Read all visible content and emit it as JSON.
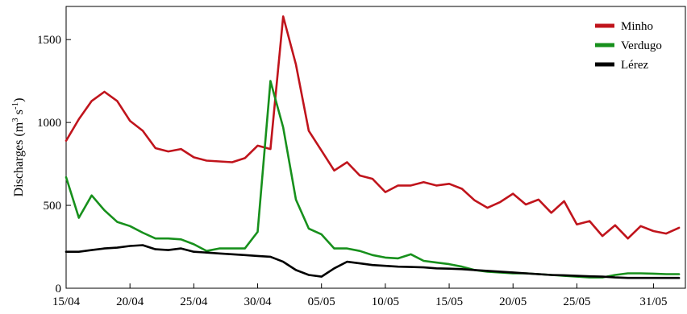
{
  "chart_data": {
    "type": "line",
    "ylabel": "Discharges (m³ s⁻¹)",
    "ylabel_parts": {
      "main": "Discharges (m",
      "sup1": "3",
      "mid": " s",
      "sup2": "-1",
      "end": ")"
    },
    "xlabel": "",
    "ylim": [
      0,
      1700
    ],
    "x_day_range": [
      0,
      47
    ],
    "y_ticks": [
      {
        "value": 0,
        "label": "0"
      },
      {
        "value": 500,
        "label": "500"
      },
      {
        "value": 1000,
        "label": "1000"
      },
      {
        "value": 1500,
        "label": "1500"
      }
    ],
    "x_ticks": [
      {
        "day": 0,
        "label": "15/04"
      },
      {
        "day": 5,
        "label": "20/04"
      },
      {
        "day": 10,
        "label": "25/04"
      },
      {
        "day": 15,
        "label": "30/04"
      },
      {
        "day": 20,
        "label": "05/05"
      },
      {
        "day": 25,
        "label": "10/05"
      },
      {
        "day": 30,
        "label": "15/05"
      },
      {
        "day": 35,
        "label": "20/05"
      },
      {
        "day": 40,
        "label": "25/05"
      },
      {
        "day": 46,
        "label": "31/05"
      }
    ],
    "legend_position": "top-right",
    "grid": false,
    "series": [
      {
        "name": "Minho",
        "color": "#c0141c",
        "values": [
          890,
          1020,
          1130,
          1185,
          1130,
          1010,
          950,
          845,
          825,
          840,
          790,
          770,
          765,
          760,
          785,
          860,
          840,
          1640,
          1350,
          950,
          830,
          710,
          760,
          680,
          660,
          580,
          620,
          620,
          640,
          620,
          630,
          600,
          530,
          485,
          520,
          570,
          505,
          535,
          455,
          525,
          385,
          405,
          315,
          380,
          300,
          375,
          345,
          330,
          365
        ]
      },
      {
        "name": "Verdugo",
        "color": "#17901c",
        "values": [
          670,
          425,
          560,
          470,
          400,
          375,
          335,
          300,
          300,
          295,
          265,
          225,
          240,
          240,
          240,
          340,
          1250,
          970,
          535,
          360,
          325,
          240,
          240,
          225,
          200,
          185,
          180,
          205,
          165,
          155,
          145,
          130,
          110,
          100,
          95,
          90,
          90,
          85,
          80,
          75,
          70,
          65,
          65,
          80,
          90,
          90,
          88,
          85,
          85
        ]
      },
      {
        "name": "Lérez",
        "color": "#000000",
        "values": [
          220,
          220,
          230,
          240,
          245,
          255,
          260,
          235,
          230,
          240,
          220,
          215,
          210,
          205,
          200,
          195,
          190,
          160,
          110,
          80,
          70,
          120,
          160,
          150,
          140,
          135,
          130,
          128,
          126,
          120,
          118,
          115,
          110,
          105,
          100,
          95,
          90,
          85,
          80,
          78,
          75,
          72,
          70,
          65,
          62,
          62,
          62,
          62,
          62
        ]
      }
    ]
  }
}
